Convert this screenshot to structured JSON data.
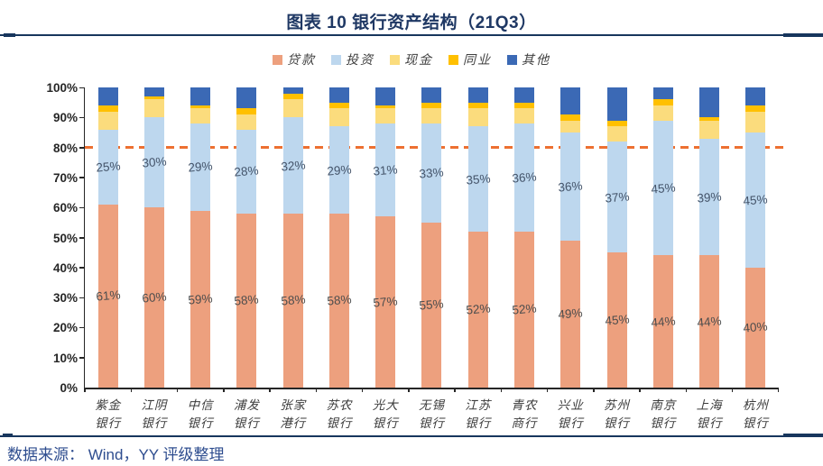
{
  "header": {
    "title": "图表 10 银行资产结构（21Q3）"
  },
  "footer": {
    "source": "数据来源： Wind，YY 评级整理"
  },
  "colors": {
    "title": "#1F3864",
    "rule": "#17365D",
    "source_text": "#2E4D8F",
    "axis": "#262626",
    "ref_line": "#ED7031"
  },
  "chart_data": {
    "type": "bar",
    "stacked": true,
    "title": "图表 10 银行资产结构（21Q3）",
    "xlabel": "",
    "ylabel": "",
    "ylim": [
      0,
      100
    ],
    "yticks": [
      "0%",
      "10%",
      "20%",
      "30%",
      "40%",
      "50%",
      "60%",
      "70%",
      "80%",
      "90%",
      "100%"
    ],
    "grid": false,
    "legend_position": "top",
    "ref_line": {
      "y": 80,
      "style": "dashed",
      "color": "#ED7031"
    },
    "categories": [
      "紫金银行",
      "江阴银行",
      "中信银行",
      "浦发银行",
      "张家港行",
      "苏农银行",
      "光大银行",
      "无锡银行",
      "江苏银行",
      "青农商行",
      "兴业银行",
      "苏州银行",
      "南京银行",
      "上海银行",
      "杭州银行"
    ],
    "series": [
      {
        "key": "loans",
        "name": "贷款",
        "color": "#EDA07E",
        "show_labels": true,
        "label_color": "#4D4D4D",
        "values": [
          61,
          60,
          59,
          58,
          58,
          58,
          57,
          55,
          52,
          52,
          49,
          45,
          44,
          44,
          40
        ]
      },
      {
        "key": "investment",
        "name": "投资",
        "color": "#BDD7EE",
        "show_labels": true,
        "label_color": "#44546A",
        "values": [
          25,
          30,
          29,
          28,
          32,
          29,
          31,
          33,
          35,
          36,
          36,
          37,
          45,
          39,
          45
        ]
      },
      {
        "key": "cash",
        "name": "现金",
        "color": "#FBDC7D",
        "show_labels": false,
        "values": [
          6,
          6,
          5,
          5,
          6,
          6,
          5,
          5,
          6,
          5,
          4,
          5,
          5,
          6,
          7
        ]
      },
      {
        "key": "interbank",
        "name": "同业",
        "color": "#FFC000",
        "show_labels": false,
        "values": [
          2,
          1,
          1,
          2,
          2,
          2,
          1,
          2,
          2,
          2,
          2,
          2,
          2,
          1,
          2
        ]
      },
      {
        "key": "other",
        "name": "其他",
        "color": "#3B69B5",
        "show_labels": false,
        "values": [
          6,
          3,
          6,
          7,
          2,
          5,
          6,
          5,
          5,
          5,
          9,
          11,
          4,
          10,
          6
        ]
      }
    ],
    "label_format": "{value}%"
  }
}
